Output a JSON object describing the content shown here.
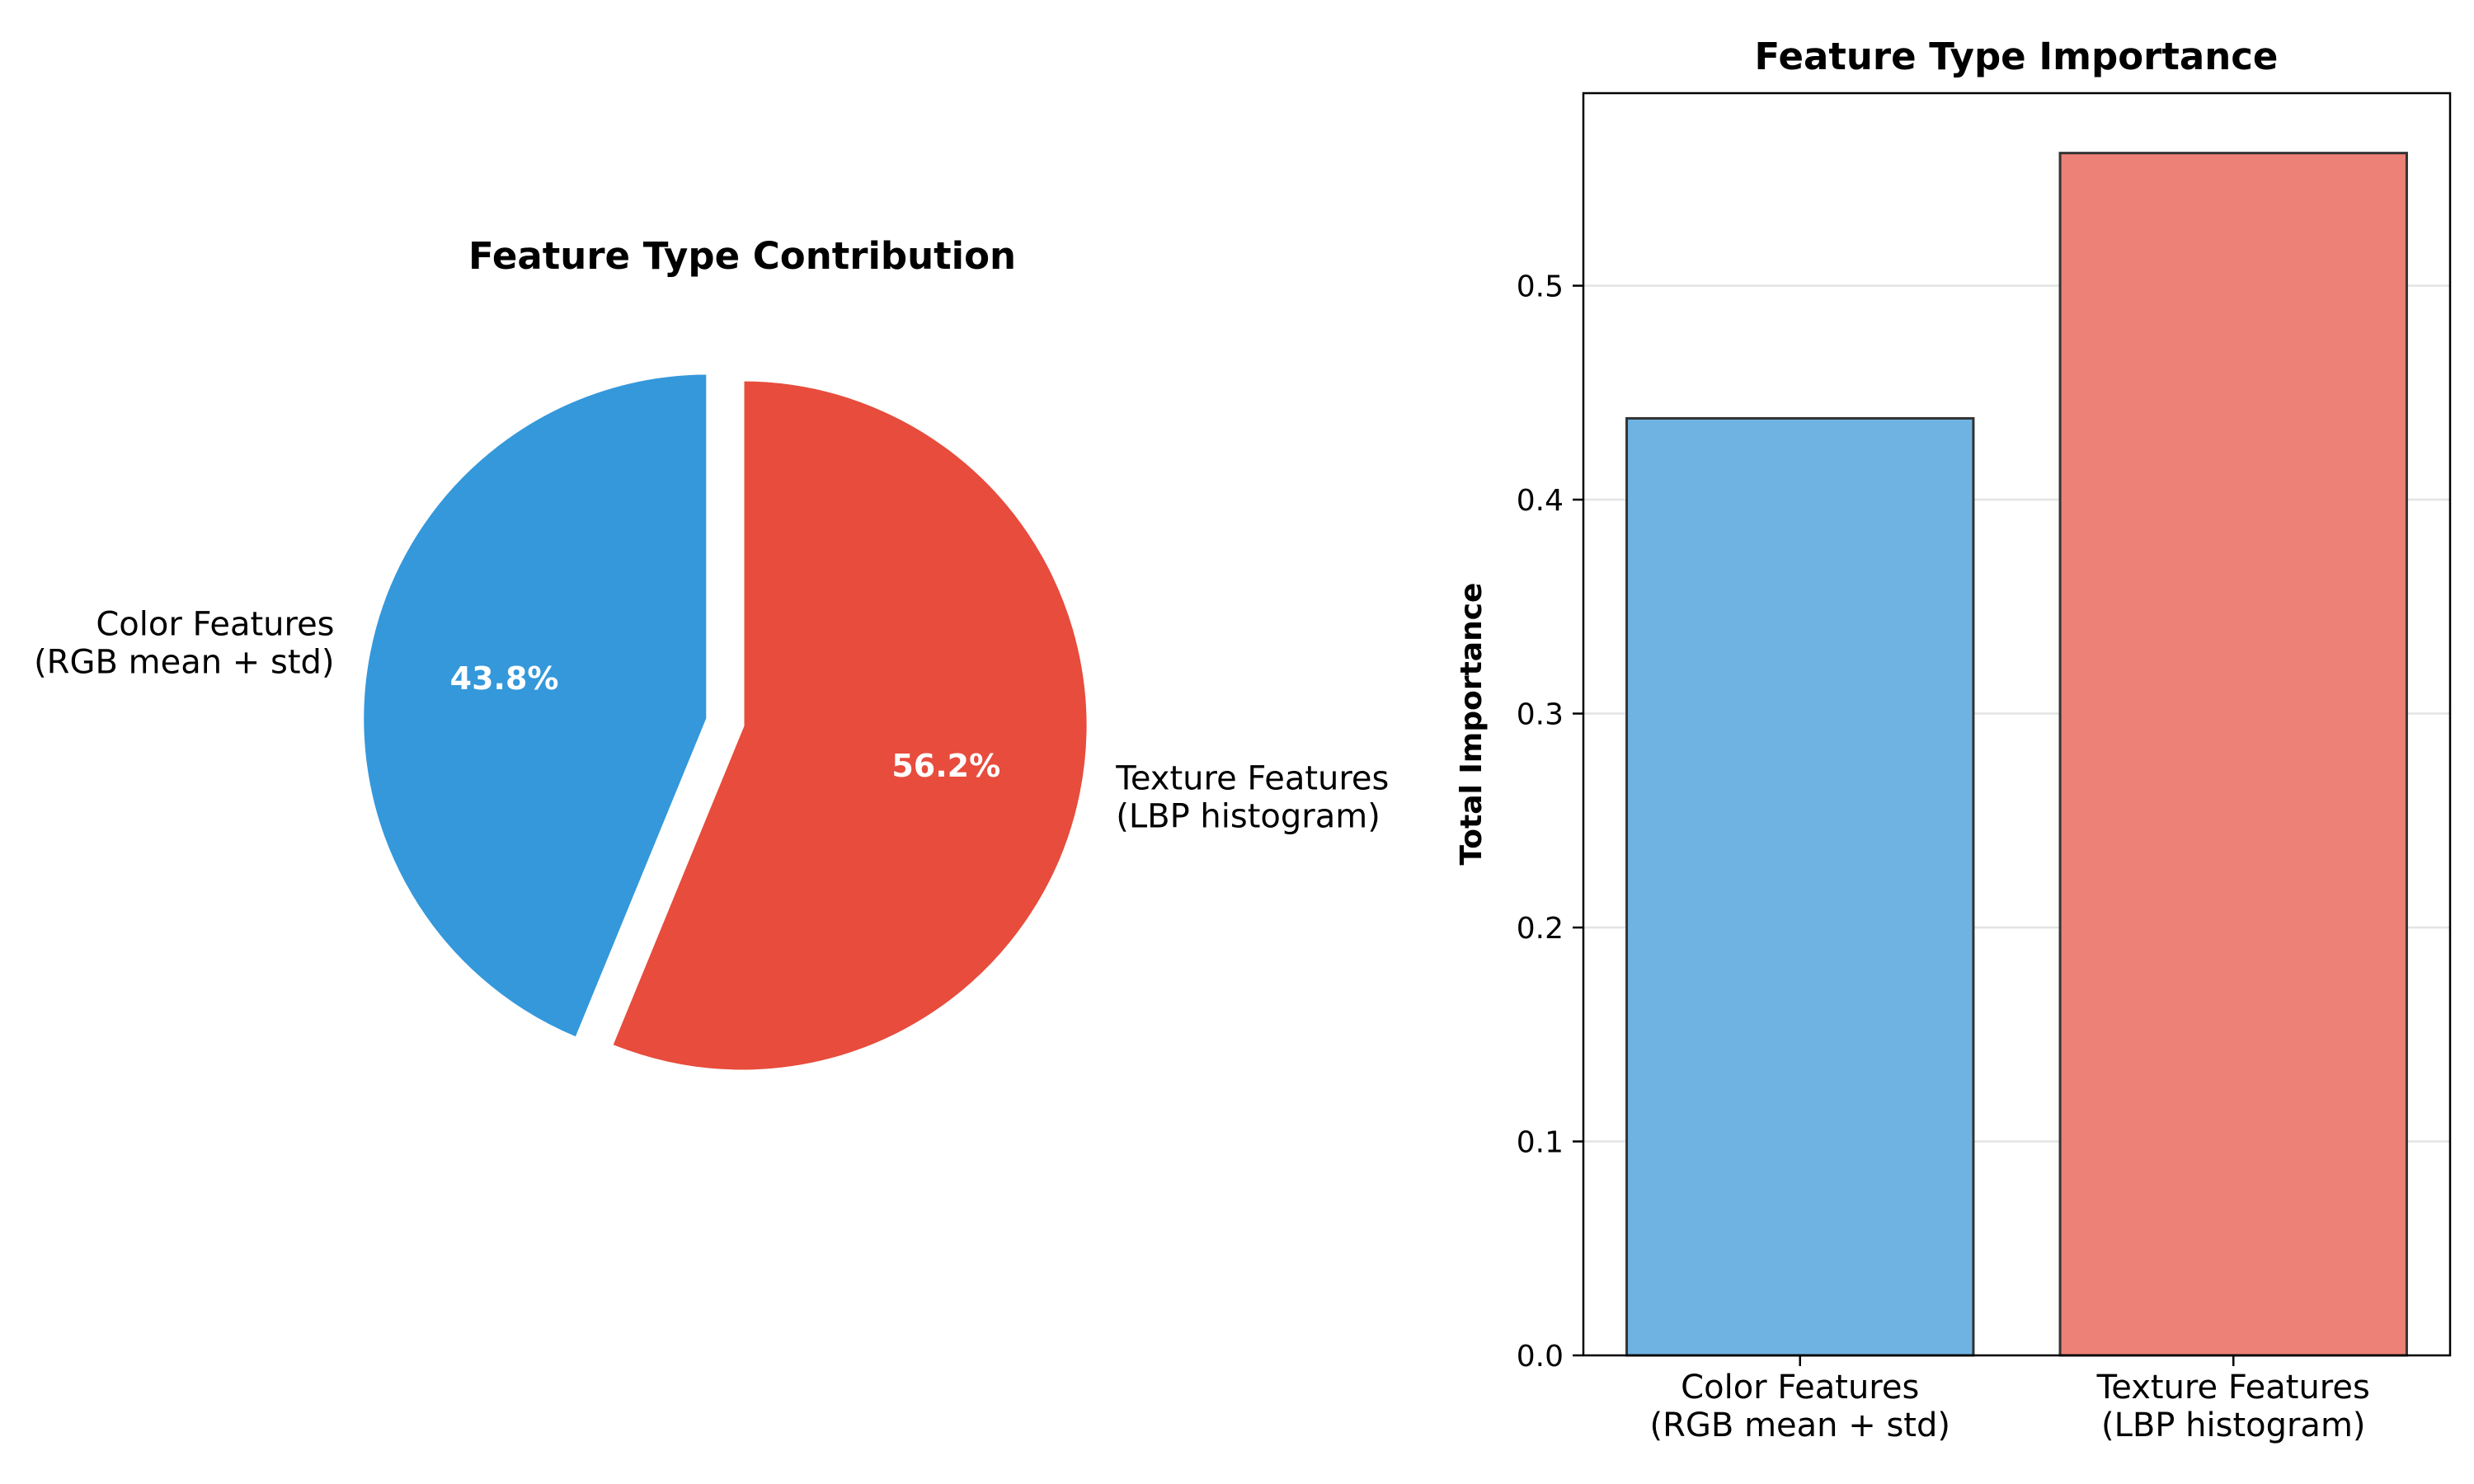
{
  "chart_data": [
    {
      "type": "pie",
      "title": "Feature Type Contribution",
      "slices": [
        {
          "label_line1": "Color Features",
          "label_line2": "(RGB mean + std)",
          "value": 43.8,
          "pct_label": "43.8%",
          "color": "#3498db"
        },
        {
          "label_line1": "Texture Features",
          "label_line2": "(LBP histogram)",
          "value": 56.2,
          "pct_label": "56.2%",
          "color": "#e74c3c"
        }
      ],
      "start_angle_deg": 90,
      "explode": true
    },
    {
      "type": "bar",
      "title": "Feature Type Importance",
      "ylabel": "Total Importance",
      "categories": [
        {
          "line1": "Color Features",
          "line2": "(RGB mean + std)"
        },
        {
          "line1": "Texture Features",
          "line2": "(LBP histogram)"
        }
      ],
      "values": [
        0.438,
        0.562
      ],
      "colors": [
        "#6fb3e3",
        "#ed8177"
      ],
      "ylim": [
        0,
        0.59
      ],
      "yticks": [
        "0.0",
        "0.1",
        "0.2",
        "0.3",
        "0.4",
        "0.5"
      ],
      "grid": "y"
    }
  ]
}
